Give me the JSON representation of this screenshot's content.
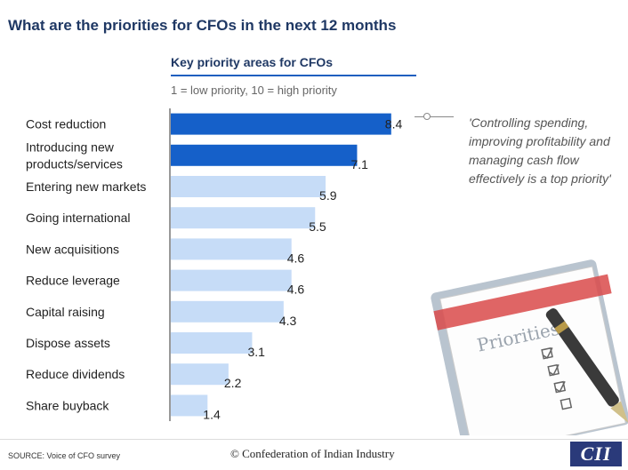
{
  "page": {
    "title": "What are the priorities for CFOs in the next 12 months",
    "quote": "'Controlling spending, improving profitability and managing cash flow effectively is a top priority'",
    "source": "SOURCE: Voice of CFO survey",
    "copyright": "© Confederation of Indian Industry",
    "logo": "CII"
  },
  "chart_data": {
    "type": "bar",
    "orientation": "horizontal",
    "title": "Key priority areas for CFOs",
    "subtitle": "1 = low priority, 10 = high priority",
    "categories": [
      "Cost reduction",
      "Introducing new\nproducts/services",
      "Entering new markets",
      "Going international",
      "New acquisitions",
      "Reduce leverage",
      "Capital raising",
      "Dispose assets",
      "Reduce dividends",
      "Share buyback"
    ],
    "values": [
      8.4,
      7.1,
      5.9,
      5.5,
      4.6,
      4.6,
      4.3,
      3.1,
      2.2,
      1.4
    ],
    "highlighted": [
      true,
      true,
      false,
      false,
      false,
      false,
      false,
      false,
      false,
      false
    ],
    "colors": {
      "highlight": "#1560c9",
      "default": "#c6dcf7",
      "axis": "#333333"
    },
    "grid": false,
    "legend": "none"
  },
  "illustration": {
    "checklist_heading": "Priorities"
  }
}
